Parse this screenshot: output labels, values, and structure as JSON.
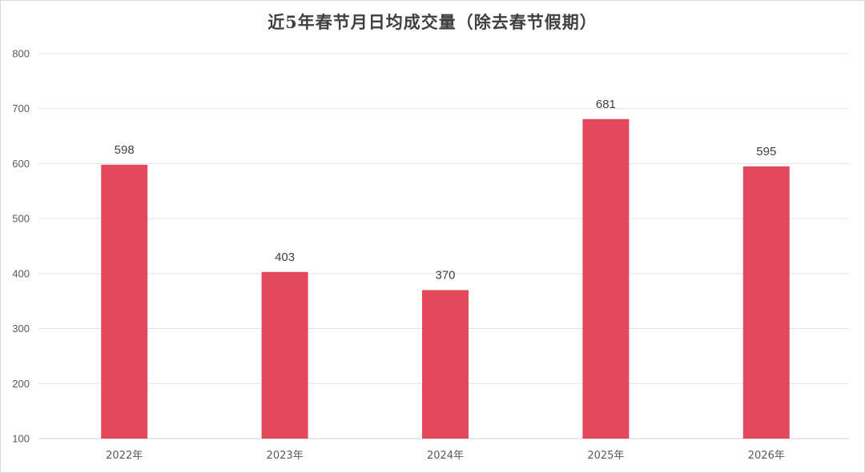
{
  "chart_data": {
    "type": "bar",
    "title": "近5年春节月日均成交量（除去春节假期）",
    "categories": [
      "2022年",
      "2023年",
      "2024年",
      "2025年",
      "2026年"
    ],
    "values": [
      598,
      403,
      370,
      681,
      595
    ],
    "ylim": [
      100,
      800
    ],
    "yticks": [
      100,
      200,
      300,
      400,
      500,
      600,
      700,
      800
    ],
    "grid": true,
    "data_labels": true,
    "bar_color": "#e24a5c"
  }
}
